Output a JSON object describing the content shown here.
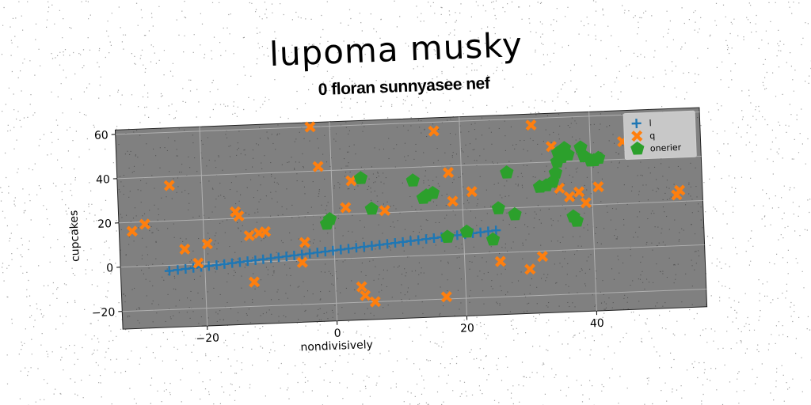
{
  "chart_data": {
    "type": "scatter",
    "title": "lupoma musky",
    "subtitle": "0 floran sunnyasee nef",
    "xlabel": "nondivisively",
    "ylabel": "cupcakes",
    "xlim": [
      -33,
      57
    ],
    "ylim": [
      -28,
      62
    ],
    "xticks": [
      -20,
      0,
      20,
      40
    ],
    "yticks": [
      -20,
      0,
      20,
      40,
      60
    ],
    "grid": true,
    "legend_position": "top-right",
    "series": [
      {
        "name": "l",
        "marker": "plus",
        "color": "#1f77b4",
        "points": [
          [
            -25.5,
            -2.5
          ],
          [
            -24.2,
            -2.2
          ],
          [
            -23.0,
            -1.9
          ],
          [
            -21.8,
            -1.6
          ],
          [
            -20.6,
            -1.3
          ],
          [
            -19.4,
            -1.0
          ],
          [
            -18.2,
            -0.7
          ],
          [
            -17.0,
            -0.4
          ],
          [
            -15.8,
            -0.1
          ],
          [
            -14.6,
            0.2
          ],
          [
            -13.4,
            0.5
          ],
          [
            -12.2,
            0.8
          ],
          [
            -11.0,
            1.1
          ],
          [
            -9.8,
            1.4
          ],
          [
            -8.6,
            1.7
          ],
          [
            -7.4,
            2.0
          ],
          [
            -6.2,
            2.3
          ],
          [
            -5.0,
            2.6
          ],
          [
            -3.8,
            2.9
          ],
          [
            -2.6,
            3.2
          ],
          [
            -1.4,
            3.5
          ],
          [
            -0.2,
            3.8
          ],
          [
            1.0,
            4.1
          ],
          [
            2.2,
            4.4
          ],
          [
            3.4,
            4.7
          ],
          [
            4.6,
            5.0
          ],
          [
            5.8,
            5.3
          ],
          [
            7.0,
            5.6
          ],
          [
            8.2,
            5.9
          ],
          [
            9.4,
            6.2
          ],
          [
            10.6,
            6.5
          ],
          [
            11.8,
            6.8
          ],
          [
            13.0,
            7.1
          ],
          [
            14.2,
            7.4
          ],
          [
            15.4,
            7.7
          ],
          [
            16.6,
            8.0
          ],
          [
            17.8,
            8.3
          ],
          [
            19.0,
            8.6
          ],
          [
            20.2,
            8.9
          ],
          [
            21.4,
            9.2
          ],
          [
            22.6,
            9.5
          ],
          [
            23.8,
            9.8
          ],
          [
            25.0,
            10.1
          ]
        ]
      },
      {
        "name": "q",
        "marker": "x",
        "color": "#ff7f0e",
        "points": [
          [
            -31,
            16
          ],
          [
            -29,
            19
          ],
          [
            -25,
            36
          ],
          [
            -23,
            7
          ],
          [
            -21,
            0.5
          ],
          [
            -19.5,
            9
          ],
          [
            -15,
            23
          ],
          [
            -14.5,
            21
          ],
          [
            -13,
            12
          ],
          [
            -12.5,
            -9
          ],
          [
            -11.5,
            13
          ],
          [
            -10.5,
            13.5
          ],
          [
            -5,
            -1
          ],
          [
            -4.5,
            8
          ],
          [
            -3,
            60
          ],
          [
            -2,
            42
          ],
          [
            2,
            23
          ],
          [
            3,
            35
          ],
          [
            4,
            -13
          ],
          [
            4.5,
            -17
          ],
          [
            6,
            -20
          ],
          [
            8,
            21
          ],
          [
            16,
            56
          ],
          [
            17,
            -19
          ],
          [
            18,
            37
          ],
          [
            18.5,
            24
          ],
          [
            21.5,
            28
          ],
          [
            25.5,
            -4
          ],
          [
            30,
            -8
          ],
          [
            31,
            57
          ],
          [
            32,
            -2.5
          ],
          [
            34,
            47
          ],
          [
            35,
            28
          ],
          [
            36.5,
            24
          ],
          [
            38,
            26
          ],
          [
            39,
            21
          ],
          [
            41,
            28
          ],
          [
            45,
            48
          ],
          [
            50,
            43
          ],
          [
            53,
            23
          ],
          [
            53.5,
            25
          ]
        ]
      },
      {
        "name": "onerier",
        "marker": "pentagon",
        "color": "#2ca02c",
        "points": [
          [
            -1,
            16
          ],
          [
            -0.5,
            18
          ],
          [
            4.5,
            36
          ],
          [
            6,
            22
          ],
          [
            12.5,
            34
          ],
          [
            14,
            26
          ],
          [
            14.5,
            27
          ],
          [
            15.5,
            28
          ],
          [
            17.5,
            8
          ],
          [
            20.5,
            10
          ],
          [
            24.5,
            6
          ],
          [
            25.5,
            20
          ],
          [
            27,
            36
          ],
          [
            28,
            17
          ],
          [
            32,
            29
          ],
          [
            33,
            29.5
          ],
          [
            34,
            31
          ],
          [
            34.5,
            35
          ],
          [
            34.8,
            40
          ],
          [
            35,
            44
          ],
          [
            35.5,
            42
          ],
          [
            36,
            46
          ],
          [
            36.5,
            43
          ],
          [
            37,
            15
          ],
          [
            37.5,
            13
          ],
          [
            38.5,
            46
          ],
          [
            39,
            42
          ],
          [
            40,
            40
          ],
          [
            40.5,
            40
          ],
          [
            41.2,
            41
          ]
        ]
      }
    ]
  }
}
